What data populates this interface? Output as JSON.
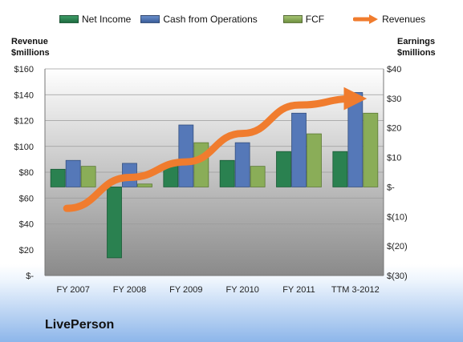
{
  "legend": {
    "items": [
      {
        "name": "Net Income",
        "color": "#2e8b57"
      },
      {
        "name": "Cash from Operations",
        "color": "#4f74b3"
      },
      {
        "name": "FCF",
        "color": "#8eb05a"
      },
      {
        "name": "Revenues",
        "color": "#f07c2e"
      }
    ]
  },
  "axis_titles": {
    "left_line1": "Revenue",
    "left_line2": "$millions",
    "right_line1": "Earnings",
    "right_line2": "$millions"
  },
  "company": "LivePerson",
  "chart_data": {
    "type": "bar",
    "categories": [
      "FY 2007",
      "FY 2008",
      "FY 2009",
      "FY 2010",
      "FY 2011",
      "TTM 3-2012"
    ],
    "series": [
      {
        "name": "Net Income",
        "axis": "right",
        "type": "bar",
        "values": [
          6,
          -24,
          8,
          9,
          12,
          12
        ]
      },
      {
        "name": "Cash from Operations",
        "axis": "right",
        "type": "bar",
        "values": [
          9,
          8,
          21,
          15,
          25,
          32
        ]
      },
      {
        "name": "FCF",
        "axis": "right",
        "type": "bar",
        "values": [
          7,
          1,
          15,
          7,
          18,
          25
        ]
      },
      {
        "name": "Revenues",
        "axis": "left",
        "type": "line",
        "values": [
          52,
          76,
          88,
          110,
          132,
          137
        ]
      }
    ],
    "left_axis": {
      "ylim": [
        0,
        160
      ],
      "tick_labels": [
        "$-",
        "$20",
        "$40",
        "$60",
        "$80",
        "$100",
        "$120",
        "$140",
        "$160"
      ]
    },
    "right_axis": {
      "ylim": [
        -30,
        40
      ],
      "tick_labels": [
        "$(30)",
        "$(20)",
        "$(10)",
        "$-",
        "$10",
        "$20",
        "$30",
        "$40"
      ]
    },
    "grid": true,
    "legend_position": "top"
  }
}
